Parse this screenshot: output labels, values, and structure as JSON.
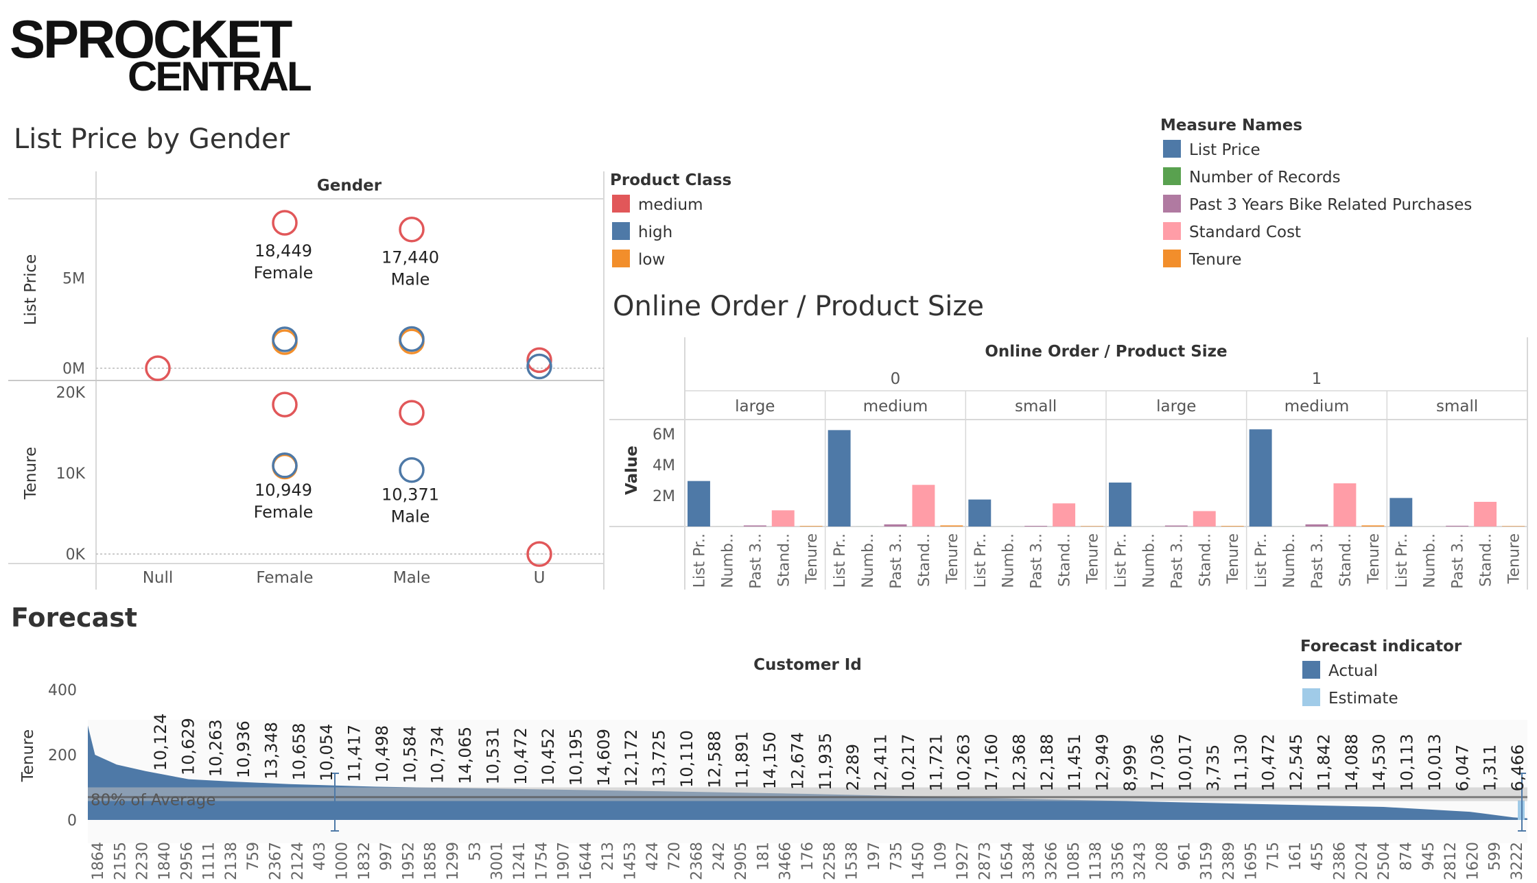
{
  "logo": {
    "line1": "SPROCKET",
    "line2": "CENTRAL"
  },
  "colors": {
    "red": "#e15759",
    "blue": "#4e79a7",
    "orange": "#f28e2b",
    "green": "#59a14f",
    "purple": "#b07aa1",
    "pink": "#ff9da7",
    "estimate": "#a0cbe8",
    "grid": "#d8d8d8",
    "text": "#333333",
    "axis": "#666666"
  },
  "product_class_legend": {
    "title": "Product Class",
    "items": [
      {
        "label": "medium",
        "color": "#e15759"
      },
      {
        "label": "high",
        "color": "#4e79a7"
      },
      {
        "label": "low",
        "color": "#f28e2b"
      }
    ]
  },
  "measure_names_legend": {
    "title": "Measure Names",
    "items": [
      {
        "label": "List Price",
        "color": "#4e79a7"
      },
      {
        "label": "Number of Records",
        "color": "#59a14f"
      },
      {
        "label": "Past 3 Years Bike Related Purchases",
        "color": "#b07aa1"
      },
      {
        "label": "Standard Cost",
        "color": "#ff9da7"
      },
      {
        "label": "Tenure",
        "color": "#f28e2b"
      }
    ]
  },
  "forecast_legend": {
    "title": "Forecast indicator",
    "items": [
      {
        "label": "Actual",
        "color": "#4e79a7"
      },
      {
        "label": "Estimate",
        "color": "#a0cbe8"
      }
    ]
  },
  "chart_data": [
    {
      "type": "scatter",
      "title": "List Price by Gender",
      "column_header": "Gender",
      "categories": [
        "Null",
        "Female",
        "Male",
        "U"
      ],
      "panes": [
        {
          "ylabel": "List Price",
          "ticks": [
            {
              "v": 0,
              "label": "0M"
            },
            {
              "v": 5000000,
              "label": "5M"
            }
          ],
          "ylim": [
            -600000,
            9300000
          ],
          "points": [
            {
              "cat": "Null",
              "series": "medium",
              "value": 0
            },
            {
              "cat": "Female",
              "series": "medium",
              "value": 8050000
            },
            {
              "cat": "Female",
              "series": "low",
              "value": 1450000
            },
            {
              "cat": "Female",
              "series": "high",
              "value": 1600000
            },
            {
              "cat": "Male",
              "series": "medium",
              "value": 7680000
            },
            {
              "cat": "Male",
              "series": "low",
              "value": 1480000
            },
            {
              "cat": "Male",
              "series": "high",
              "value": 1620000
            },
            {
              "cat": "U",
              "series": "medium",
              "value": 450000
            },
            {
              "cat": "U",
              "series": "high",
              "value": 100000
            }
          ],
          "labels": [
            {
              "cat": "Female",
              "value": 8050000,
              "lines": [
                "18,449",
                "Female"
              ]
            },
            {
              "cat": "Male",
              "value": 7680000,
              "lines": [
                "17,440",
                "Male"
              ]
            }
          ]
        },
        {
          "ylabel": "Tenure",
          "ticks": [
            {
              "v": 0,
              "label": "0K"
            },
            {
              "v": 10000,
              "label": "10K"
            },
            {
              "v": 20000,
              "label": "20K"
            }
          ],
          "ylim": [
            -1000,
            21000
          ],
          "points": [
            {
              "cat": "Female",
              "series": "medium",
              "value": 18449
            },
            {
              "cat": "Female",
              "series": "low",
              "value": 10800
            },
            {
              "cat": "Female",
              "series": "high",
              "value": 10949
            },
            {
              "cat": "Male",
              "series": "medium",
              "value": 17440
            },
            {
              "cat": "Male",
              "series": "high",
              "value": 10371
            },
            {
              "cat": "U",
              "series": "medium",
              "value": 0
            }
          ],
          "labels": [
            {
              "cat": "Female",
              "value": 10949,
              "lines": [
                "10,949",
                "Female"
              ]
            },
            {
              "cat": "Male",
              "value": 10371,
              "lines": [
                "10,371",
                "Male"
              ]
            }
          ]
        }
      ]
    },
    {
      "type": "bar",
      "title": "Online Order / Product Size",
      "column_header": "Online Order  /  Product Size",
      "ylabel": "Value",
      "ylim": [
        0,
        6800000
      ],
      "ticks": [
        {
          "v": 2000000,
          "label": "2M"
        },
        {
          "v": 4000000,
          "label": "4M"
        },
        {
          "v": 6000000,
          "label": "6M"
        }
      ],
      "measures": [
        "List Pr..",
        "Numb..",
        "Past 3..",
        "Stand..",
        "Tenure"
      ],
      "measure_colors": [
        "#4e79a7",
        "#59a14f",
        "#b07aa1",
        "#ff9da7",
        "#f28e2b"
      ],
      "groups": [
        {
          "online_order": "0",
          "sizes": [
            {
              "size": "large",
              "values": [
                2950000,
                1000,
                70000,
                1050000,
                35000
              ]
            },
            {
              "size": "medium",
              "values": [
                6250000,
                2000,
                140000,
                2700000,
                70000
              ]
            },
            {
              "size": "small",
              "values": [
                1750000,
                1000,
                45000,
                1500000,
                25000
              ]
            }
          ]
        },
        {
          "online_order": "1",
          "sizes": [
            {
              "size": "large",
              "values": [
                2850000,
                1000,
                65000,
                1000000,
                35000
              ]
            },
            {
              "size": "medium",
              "values": [
                6300000,
                2000,
                140000,
                2800000,
                70000
              ]
            },
            {
              "size": "small",
              "values": [
                1850000,
                1000,
                50000,
                1600000,
                25000
              ]
            }
          ]
        }
      ]
    },
    {
      "type": "area",
      "title": "Forecast",
      "xlabel": "Customer Id",
      "ylabel": "Tenure",
      "ylim": [
        -40,
        410
      ],
      "ticks": [
        {
          "v": 0,
          "label": "0"
        },
        {
          "v": 200,
          "label": "200"
        },
        {
          "v": 400,
          "label": "400"
        }
      ],
      "reference_band": {
        "label": "80% of Average",
        "low": 58,
        "high": 100,
        "line": 70
      },
      "profile": [
        [
          0,
          290
        ],
        [
          0.005,
          200
        ],
        [
          0.02,
          170
        ],
        [
          0.04,
          150
        ],
        [
          0.07,
          125
        ],
        [
          0.1,
          118
        ],
        [
          0.14,
          110
        ],
        [
          0.2,
          102
        ],
        [
          0.3,
          95
        ],
        [
          0.4,
          88
        ],
        [
          0.5,
          80
        ],
        [
          0.6,
          70
        ],
        [
          0.7,
          60
        ],
        [
          0.8,
          50
        ],
        [
          0.9,
          40
        ],
        [
          0.96,
          25
        ],
        [
          0.99,
          8
        ],
        [
          1,
          5
        ]
      ],
      "x_ticks": [
        "1864",
        "2155",
        "2230",
        "1840",
        "2956",
        "1111",
        "2138",
        "759",
        "2367",
        "2124",
        "403",
        "1000",
        "1832",
        "997",
        "1952",
        "1858",
        "1299",
        "53",
        "3001",
        "1241",
        "1754",
        "1907",
        "1644",
        "213",
        "1453",
        "424",
        "720",
        "2368",
        "242",
        "2905",
        "181",
        "3466",
        "176",
        "2258",
        "1538",
        "197",
        "735",
        "1450",
        "109",
        "1927",
        "2873",
        "1654",
        "3384",
        "3266",
        "1085",
        "1138",
        "3356",
        "3243",
        "208",
        "961",
        "3159",
        "2389",
        "1695",
        "715",
        "161",
        "455",
        "2386",
        "2024",
        "2504",
        "874",
        "945",
        "2812",
        "1620",
        "599",
        "3222"
      ],
      "data_labels": [
        "10,124",
        "10,629",
        "10,263",
        "10,936",
        "13,348",
        "10,658",
        "10,054",
        "11,417",
        "10,498",
        "10,584",
        "10,734",
        "14,065",
        "10,531",
        "10,472",
        "10,452",
        "10,195",
        "14,609",
        "12,172",
        "13,725",
        "10,110",
        "12,588",
        "11,891",
        "14,150",
        "12,674",
        "11,935",
        "2,289",
        "12,411",
        "10,217",
        "11,721",
        "10,263",
        "17,160",
        "12,368",
        "12,188",
        "11,451",
        "12,949",
        "8,999",
        "17,036",
        "10,017",
        "3,735",
        "11,130",
        "10,472",
        "12,545",
        "11,842",
        "14,088",
        "14,530",
        "10,113",
        "10,013",
        "6,047",
        "1,311",
        "6,466"
      ]
    }
  ]
}
